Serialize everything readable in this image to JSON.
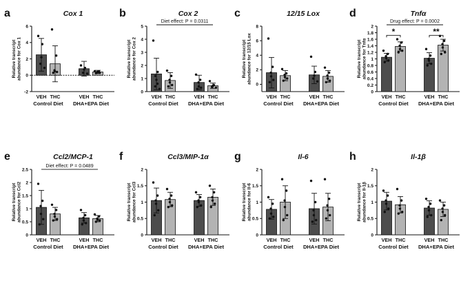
{
  "colors": {
    "veh": "#4d4d4d",
    "thc": "#b3b3b3",
    "points": "#111111",
    "axis": "#111111"
  },
  "chart_data": [
    {
      "type": "bar",
      "letter": "a",
      "title": "Cox 1",
      "ylabel": [
        "Relative transcript",
        "abundance for Cox 1"
      ],
      "ylim": [
        -2,
        6
      ],
      "yticks": [
        -2,
        0,
        2,
        4,
        6
      ],
      "zero_line": true,
      "groups": [
        "Control Diet",
        "DHA+EPA Diet"
      ],
      "categories": [
        "VEH",
        "THC"
      ],
      "series": [
        {
          "group": "Control Diet",
          "category": "VEH",
          "mean": 2.5,
          "sd": 2.0,
          "points": [
            4.8,
            3.8,
            2.2,
            1.4,
            0.9
          ]
        },
        {
          "group": "Control Diet",
          "category": "THC",
          "mean": 1.4,
          "sd": 2.2,
          "points": [
            5.6,
            2.4,
            0.6,
            0.5,
            0.4,
            0.3
          ]
        },
        {
          "group": "DHA+EPA Diet",
          "category": "VEH",
          "mean": 0.8,
          "sd": 0.9,
          "points": [
            1.2,
            0.9,
            0.7,
            0.3,
            0.2
          ]
        },
        {
          "group": "DHA+EPA Diet",
          "category": "THC",
          "mean": 0.4,
          "sd": 0.2,
          "points": [
            0.5,
            0.45,
            0.4,
            0.35,
            0.3,
            0.25
          ]
        }
      ],
      "annotations": []
    },
    {
      "type": "bar",
      "letter": "b",
      "title": "Cox 2",
      "ylabel": [
        "Relative transcript",
        "abundance for Cox 2"
      ],
      "ylim": [
        0,
        5
      ],
      "yticks": [
        0,
        1,
        2,
        3,
        4,
        5
      ],
      "zero_line": false,
      "groups": [
        "Control Diet",
        "DHA+EPA Diet"
      ],
      "categories": [
        "VEH",
        "THC"
      ],
      "series": [
        {
          "group": "Control Diet",
          "category": "VEH",
          "mean": 1.35,
          "sd": 1.2,
          "points": [
            3.9,
            1.5,
            1.2,
            0.9,
            0.6,
            0.4,
            0.2
          ]
        },
        {
          "group": "Control Diet",
          "category": "THC",
          "mean": 0.85,
          "sd": 0.6,
          "points": [
            1.6,
            1.2,
            0.9,
            0.7,
            0.5,
            0.4
          ]
        },
        {
          "group": "DHA+EPA Diet",
          "category": "VEH",
          "mean": 0.7,
          "sd": 0.55,
          "points": [
            1.3,
            0.9,
            0.7,
            0.4,
            0.3,
            0.2
          ]
        },
        {
          "group": "DHA+EPA Diet",
          "category": "THC",
          "mean": 0.45,
          "sd": 0.2,
          "points": [
            0.8,
            0.5,
            0.45,
            0.35,
            0.3
          ]
        }
      ],
      "annotations": [
        {
          "kind": "bracket",
          "text": "Diet effect: P = 0.0311",
          "from": [
            0,
            0
          ],
          "to": [
            1,
            1
          ],
          "level": 5.0
        }
      ]
    },
    {
      "type": "bar",
      "letter": "c",
      "title": "12/15 Lox",
      "ylabel": [
        "Relative transcript",
        "abundance for 12/15 Lox"
      ],
      "ylim": [
        -1,
        8
      ],
      "yticks": [
        0,
        2,
        4,
        6,
        8
      ],
      "zero_line": false,
      "groups": [
        "Control Diet",
        "DHA+EPA Diet"
      ],
      "categories": [
        "VEH",
        "THC"
      ],
      "series": [
        {
          "group": "Control Diet",
          "category": "VEH",
          "mean": 1.6,
          "sd": 2.1,
          "points": [
            6.3,
            2.4,
            1.6,
            1.1,
            0.6,
            0.3
          ]
        },
        {
          "group": "Control Diet",
          "category": "THC",
          "mean": 1.2,
          "sd": 0.7,
          "points": [
            2.1,
            1.5,
            1.3,
            1.0,
            0.8,
            0.5
          ]
        },
        {
          "group": "DHA+EPA Diet",
          "category": "VEH",
          "mean": 1.3,
          "sd": 1.2,
          "points": [
            3.8,
            1.7,
            1.2,
            0.8,
            0.4
          ]
        },
        {
          "group": "DHA+EPA Diet",
          "category": "THC",
          "mean": 1.1,
          "sd": 0.8,
          "points": [
            2.3,
            1.6,
            1.2,
            0.8,
            0.5,
            0.3
          ]
        }
      ],
      "annotations": []
    },
    {
      "type": "bar",
      "letter": "d",
      "title": "Tnfα",
      "ylabel": [
        "Relative transcript",
        "abundance for Tnfα"
      ],
      "ylim": [
        0,
        2.0
      ],
      "yticks": [
        0,
        0.2,
        0.4,
        0.6,
        0.8,
        1.0,
        1.2,
        1.4,
        1.6,
        1.8,
        2.0
      ],
      "zero_line": false,
      "groups": [
        "Control Diet",
        "DHA+EPA Diet"
      ],
      "categories": [
        "VEH",
        "THC"
      ],
      "series": [
        {
          "group": "Control Diet",
          "category": "VEH",
          "mean": 1.05,
          "sd": 0.12,
          "points": [
            1.25,
            1.15,
            1.08,
            1.02,
            0.95,
            0.9
          ]
        },
        {
          "group": "Control Diet",
          "category": "THC",
          "mean": 1.38,
          "sd": 0.14,
          "points": [
            1.6,
            1.5,
            1.4,
            1.3,
            1.25,
            1.2
          ]
        },
        {
          "group": "DHA+EPA Diet",
          "category": "VEH",
          "mean": 1.02,
          "sd": 0.17,
          "points": [
            1.3,
            1.1,
            1.0,
            0.95,
            0.85,
            0.8
          ]
        },
        {
          "group": "DHA+EPA Diet",
          "category": "THC",
          "mean": 1.42,
          "sd": 0.18,
          "points": [
            1.7,
            1.55,
            1.45,
            1.35,
            1.2,
            1.15
          ]
        }
      ],
      "annotations": [
        {
          "kind": "bracket",
          "text": "Drug effect: P = 0.0002",
          "from": [
            0,
            0
          ],
          "to": [
            1,
            1
          ],
          "level": 2.0
        },
        {
          "kind": "sig",
          "text": "*",
          "from": [
            0,
            0
          ],
          "to": [
            0,
            1
          ],
          "level": 1.72
        },
        {
          "kind": "sig",
          "text": "**",
          "from": [
            1,
            0
          ],
          "to": [
            1,
            1
          ],
          "level": 1.72
        }
      ]
    },
    {
      "type": "bar",
      "letter": "e",
      "title": "Ccl2/MCP-1",
      "ylabel": [
        "Relative transcript",
        "abundance for Ccl2"
      ],
      "ylim": [
        0,
        2.5
      ],
      "yticks": [
        0,
        0.5,
        1.0,
        1.5,
        2.0,
        2.5
      ],
      "zero_line": false,
      "groups": [
        "Control Diet",
        "DHA+EPA Diet"
      ],
      "categories": [
        "VEH",
        "THC"
      ],
      "series": [
        {
          "group": "Control Diet",
          "category": "VEH",
          "mean": 1.05,
          "sd": 0.65,
          "points": [
            1.95,
            1.3,
            1.1,
            0.8,
            0.6,
            0.4
          ]
        },
        {
          "group": "Control Diet",
          "category": "THC",
          "mean": 0.8,
          "sd": 0.25,
          "points": [
            1.15,
            0.95,
            0.8,
            0.7,
            0.6,
            0.55
          ]
        },
        {
          "group": "DHA+EPA Diet",
          "category": "VEH",
          "mean": 0.65,
          "sd": 0.2,
          "points": [
            0.95,
            0.75,
            0.65,
            0.55,
            0.45,
            0.4
          ]
        },
        {
          "group": "DHA+EPA Diet",
          "category": "THC",
          "mean": 0.62,
          "sd": 0.12,
          "points": [
            0.78,
            0.7,
            0.62,
            0.58,
            0.55,
            0.5
          ]
        }
      ],
      "annotations": [
        {
          "kind": "bracket",
          "text": "Diet effect: P = 0.0489",
          "from": [
            0,
            0
          ],
          "to": [
            1,
            1
          ],
          "level": 2.45
        }
      ]
    },
    {
      "type": "bar",
      "letter": "f",
      "title": "Ccl3/MIP-1α",
      "ylabel": [
        "Relative transcript",
        "abundance for Ccl3"
      ],
      "ylim": [
        0,
        2.0
      ],
      "yticks": [
        0,
        0.5,
        1.0,
        1.5,
        2.0
      ],
      "zero_line": false,
      "groups": [
        "Control Diet",
        "DHA+EPA Diet"
      ],
      "categories": [
        "VEH",
        "THC"
      ],
      "series": [
        {
          "group": "Control Diet",
          "category": "VEH",
          "mean": 1.05,
          "sd": 0.38,
          "points": [
            1.6,
            1.2,
            1.05,
            0.95,
            0.75,
            0.6
          ]
        },
        {
          "group": "Control Diet",
          "category": "THC",
          "mean": 1.08,
          "sd": 0.22,
          "points": [
            1.4,
            1.2,
            1.1,
            1.0,
            0.9,
            0.85
          ]
        },
        {
          "group": "DHA+EPA Diet",
          "category": "VEH",
          "mean": 1.05,
          "sd": 0.18,
          "points": [
            1.3,
            1.15,
            1.05,
            1.0,
            0.9,
            0.85
          ]
        },
        {
          "group": "DHA+EPA Diet",
          "category": "THC",
          "mean": 1.15,
          "sd": 0.25,
          "points": [
            1.5,
            1.3,
            1.15,
            1.05,
            0.95,
            0.85
          ]
        }
      ],
      "annotations": []
    },
    {
      "type": "bar",
      "letter": "g",
      "title": "Il-6",
      "ylabel": [
        "Relative transcript",
        "abundance for Il-6"
      ],
      "ylim": [
        0,
        2.0
      ],
      "yticks": [
        0,
        0.5,
        1.0,
        1.5,
        2.0
      ],
      "zero_line": false,
      "groups": [
        "Control Diet",
        "DHA+EPA Diet"
      ],
      "categories": [
        "VEH",
        "THC"
      ],
      "series": [
        {
          "group": "Control Diet",
          "category": "VEH",
          "mean": 0.78,
          "sd": 0.3,
          "points": [
            1.15,
            0.95,
            0.8,
            0.65,
            0.55,
            0.5
          ]
        },
        {
          "group": "Control Diet",
          "category": "THC",
          "mean": 1.0,
          "sd": 0.5,
          "points": [
            1.7,
            1.35,
            1.05,
            0.85,
            0.6,
            0.45
          ]
        },
        {
          "group": "DHA+EPA Diet",
          "category": "VEH",
          "mean": 0.8,
          "sd": 0.47,
          "points": [
            1.65,
            1.0,
            0.75,
            0.6,
            0.45,
            0.4
          ]
        },
        {
          "group": "DHA+EPA Diet",
          "category": "THC",
          "mean": 0.85,
          "sd": 0.42,
          "points": [
            1.7,
            1.1,
            0.9,
            0.75,
            0.6,
            0.5
          ]
        }
      ],
      "annotations": []
    },
    {
      "type": "bar",
      "letter": "h",
      "title": "Il-1β",
      "ylabel": [
        "Relative transcript",
        "abundance for Il-1β"
      ],
      "ylim": [
        0,
        2.0
      ],
      "yticks": [
        0,
        0.5,
        1.0,
        1.5,
        2.0
      ],
      "zero_line": false,
      "groups": [
        "Control Diet",
        "DHA+EPA Diet"
      ],
      "categories": [
        "VEH",
        "THC"
      ],
      "series": [
        {
          "group": "Control Diet",
          "category": "VEH",
          "mean": 1.03,
          "sd": 0.27,
          "points": [
            1.35,
            1.2,
            1.05,
            0.95,
            0.8,
            0.7
          ]
        },
        {
          "group": "Control Diet",
          "category": "THC",
          "mean": 0.92,
          "sd": 0.25,
          "points": [
            1.4,
            1.05,
            0.9,
            0.8,
            0.7,
            0.65
          ]
        },
        {
          "group": "DHA+EPA Diet",
          "category": "VEH",
          "mean": 0.82,
          "sd": 0.22,
          "points": [
            1.1,
            0.95,
            0.85,
            0.75,
            0.6,
            0.55
          ]
        },
        {
          "group": "DHA+EPA Diet",
          "category": "THC",
          "mean": 0.78,
          "sd": 0.22,
          "points": [
            1.05,
            0.9,
            0.8,
            0.7,
            0.6,
            0.45
          ]
        }
      ],
      "annotations": []
    }
  ]
}
